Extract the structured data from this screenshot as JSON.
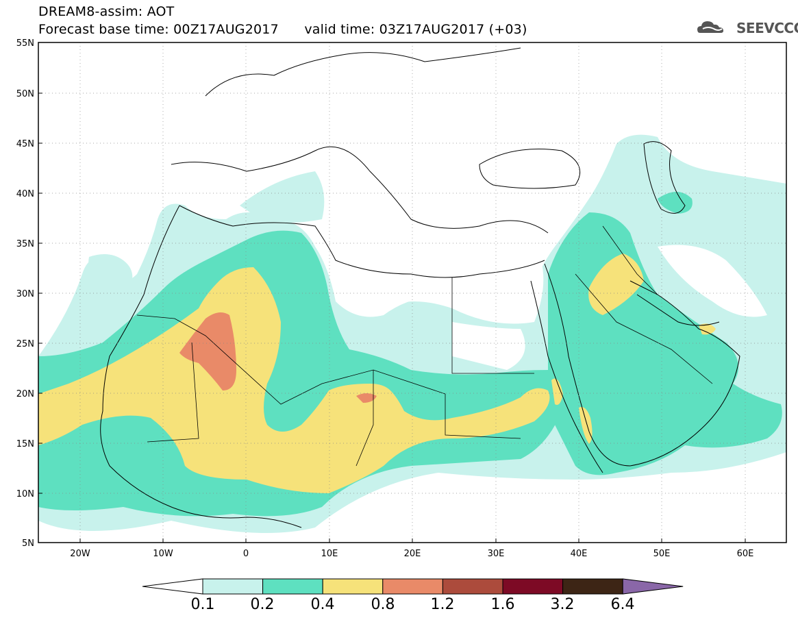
{
  "header": {
    "line1": "DREAM8-assim: AOT",
    "line2_base_label": "Forecast base time: 00Z17AUG2017",
    "line2_valid_label": "valid time: 03Z17AUG2017 (+03)"
  },
  "logo": {
    "text": "SEEVCCC",
    "icon": "cloud-icon"
  },
  "map": {
    "projection": "cylindrical",
    "lon_range": [
      -25,
      65
    ],
    "lat_range": [
      5,
      55
    ],
    "grid": true,
    "lat_ticks": [
      "55N",
      "50N",
      "45N",
      "40N",
      "35N",
      "30N",
      "25N",
      "20N",
      "15N",
      "10N",
      "5N"
    ],
    "lon_ticks": [
      "20W",
      "10W",
      "0",
      "10E",
      "20E",
      "30E",
      "40E",
      "50E",
      "60E"
    ],
    "variable": "AOT"
  },
  "colorbar": {
    "labels": [
      "0.1",
      "0.2",
      "0.4",
      "0.8",
      "1.2",
      "1.6",
      "3.2",
      "6.4"
    ],
    "colors": [
      "#c8f2ec",
      "#5ee0c0",
      "#f6e27a",
      "#e98a68",
      "#ac4b3c",
      "#7d0a25",
      "#3d2515",
      "#8a67a8"
    ],
    "under_color": "#ffffff"
  }
}
